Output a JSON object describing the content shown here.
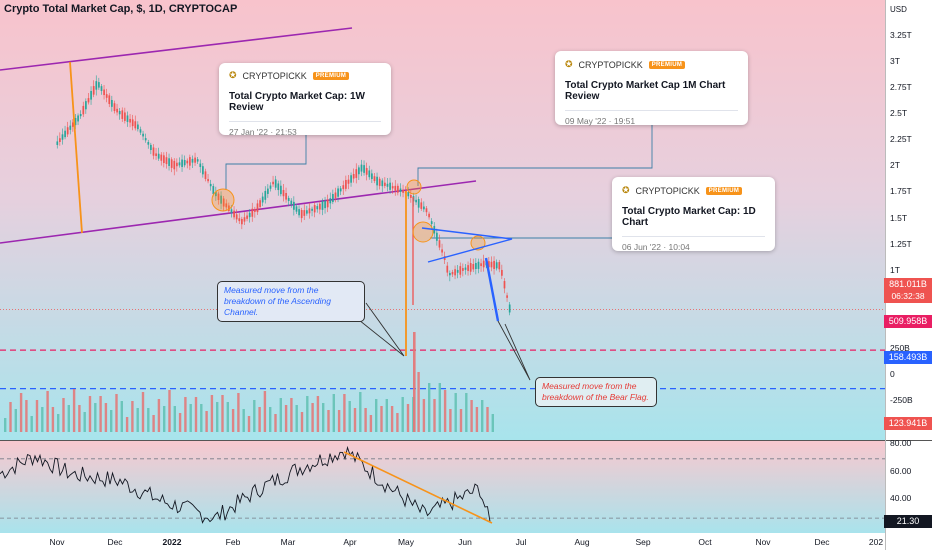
{
  "header": {
    "title": "Crypto Total Market Cap, $, 1D, CRYPTOCAP"
  },
  "price_axis": {
    "currency": "USD",
    "ticks": [
      "3.25T",
      "3T",
      "2.75T",
      "2.5T",
      "2.25T",
      "2T",
      "1.75T",
      "1.5T",
      "1.25T",
      "1T",
      "250B",
      "0",
      "-250B"
    ]
  },
  "tags": {
    "last_price": "881.011B",
    "countdown": "06:32:38",
    "red_level": "509.958B",
    "blue_level": "158.493B",
    "volume": "123.941B",
    "rsi_value": "21.30"
  },
  "rsi_axis": {
    "ticks": [
      "80.00",
      "60.00",
      "40.00"
    ]
  },
  "time_axis": {
    "ticks": [
      "Nov",
      "Dec",
      "2022",
      "Feb",
      "Mar",
      "Apr",
      "May",
      "Jun",
      "Jul",
      "Aug",
      "Sep",
      "Oct",
      "Nov",
      "Dec",
      "202"
    ]
  },
  "ideas": [
    {
      "author": "CRYPTOPICKK",
      "badge": "PREMIUM",
      "title": "Total Crypto Market Cap: 1W Review",
      "date": "27 Jan '22 · 21:53"
    },
    {
      "author": "CRYPTOPICKK",
      "badge": "PREMIUM",
      "title": "Total Crypto Market Cap 1M Chart Review",
      "date": "09 May '22 · 19:51"
    },
    {
      "author": "CRYPTOPICKK",
      "badge": "PREMIUM",
      "title": "Total Crypto Market Cap: 1D Chart",
      "date": "06 Jun '22 · 10:04"
    }
  ],
  "notes": {
    "channel": "Measured move from the breakdown of the Ascending Channel.",
    "bear_flag": "Measured move from the breakdown of the Bear Flag."
  },
  "colors": {
    "bull": "#26a69a",
    "bear": "#ef5350",
    "channel": "#9c27b0",
    "orange": "#f7931a",
    "red_level": "#e91e63",
    "blue_level": "#2962ff",
    "projection": "#2962ff"
  },
  "chart_data": {
    "type": "line",
    "title": "Crypto Total Market Cap, $, 1D, CRYPTOCAP",
    "x": [
      "2021-10-20",
      "2021-11-01",
      "2021-11-10",
      "2021-11-20",
      "2021-12-01",
      "2021-12-10",
      "2021-12-20",
      "2022-01-01",
      "2022-01-10",
      "2022-01-24",
      "2022-02-01",
      "2022-02-10",
      "2022-02-24",
      "2022-03-10",
      "2022-03-28",
      "2022-04-05",
      "2022-04-20",
      "2022-05-01",
      "2022-05-10",
      "2022-05-12",
      "2022-05-20",
      "2022-05-31",
      "2022-06-08",
      "2022-06-13"
    ],
    "series": [
      {
        "values": [
          2.4,
          2.65,
          2.95,
          2.7,
          2.55,
          2.3,
          2.2,
          2.25,
          1.95,
          1.68,
          1.8,
          2.05,
          1.75,
          1.85,
          2.18,
          2.05,
          1.95,
          1.78,
          1.35,
          1.2,
          1.25,
          1.3,
          1.28,
          0.88
        ]
      }
    ],
    "y_unit": "USD (trillions)",
    "ylim": [
      -0.25,
      3.4
    ],
    "levels": {
      "red_dashed": 0.509958,
      "blue_dashed": 0.158493
    },
    "last_value": 0.881011,
    "volume_last": 0.123941,
    "rsi_last": 21.3,
    "rsi_ylim": [
      20,
      82
    ],
    "grid": false
  }
}
